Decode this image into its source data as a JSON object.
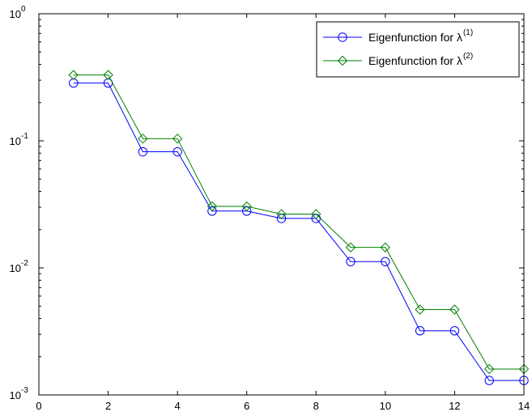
{
  "chart_data": {
    "type": "line",
    "title": "",
    "xlabel": "",
    "ylabel": "",
    "xlim": [
      0,
      14
    ],
    "ylim": [
      0.001,
      1
    ],
    "yscale": "log",
    "grid": false,
    "legend_position": "top-right",
    "x_ticks": [
      0,
      2,
      4,
      6,
      8,
      10,
      12,
      14
    ],
    "y_ticks": [
      {
        "value": 0.001,
        "base": "10",
        "exp": "-3"
      },
      {
        "value": 0.01,
        "base": "10",
        "exp": "-2"
      },
      {
        "value": 0.1,
        "base": "10",
        "exp": "-1"
      },
      {
        "value": 1,
        "base": "10",
        "exp": "0"
      }
    ],
    "series": [
      {
        "name": "Eigenfunction for λ(1)",
        "legend_text": "Eigenfunction for λ",
        "legend_sup": "(1)",
        "color": "#0000ff",
        "marker": "circle",
        "x": [
          1,
          2,
          3,
          4,
          5,
          6,
          7,
          8,
          9,
          10,
          11,
          12,
          13,
          14
        ],
        "y": [
          0.285,
          0.285,
          0.082,
          0.082,
          0.028,
          0.028,
          0.0245,
          0.0245,
          0.0112,
          0.0112,
          0.0032,
          0.0032,
          0.0013,
          0.0013
        ]
      },
      {
        "name": "Eigenfunction for λ(2)",
        "legend_text": "Eigenfunction for λ",
        "legend_sup": "(2)",
        "color": "#008000",
        "marker": "diamond",
        "x": [
          1,
          2,
          3,
          4,
          5,
          6,
          7,
          8,
          9,
          10,
          11,
          12,
          13,
          14
        ],
        "y": [
          0.33,
          0.33,
          0.104,
          0.104,
          0.0305,
          0.0305,
          0.0265,
          0.0265,
          0.0145,
          0.0145,
          0.0047,
          0.0047,
          0.0016,
          0.0016
        ]
      }
    ]
  }
}
